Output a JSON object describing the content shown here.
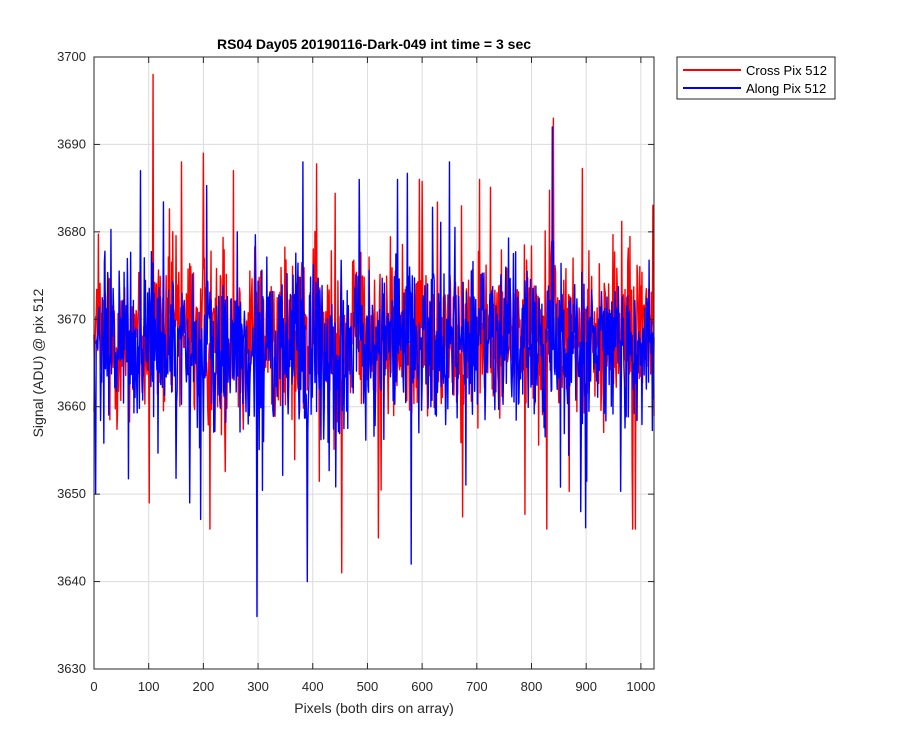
{
  "chart_data": {
    "type": "line",
    "title": "RS04 Day05 20190116-Dark-049 int time = 3 sec",
    "xlabel": "Pixels (both dirs on array)",
    "ylabel": "Signal (ADU) @ pix 512",
    "xlim": [
      0,
      1024
    ],
    "ylim": [
      3630,
      3700
    ],
    "xticks": [
      0,
      100,
      200,
      300,
      400,
      500,
      600,
      700,
      800,
      900,
      1000
    ],
    "yticks": [
      3630,
      3640,
      3650,
      3660,
      3670,
      3680,
      3690,
      3700
    ],
    "grid": true,
    "legend_position": "outside-top-right",
    "series": [
      {
        "name": "Cross Pix 512",
        "color": "#ff0000",
        "mean": 3668,
        "noise_range": [
          3654,
          3682
        ],
        "spikes": [
          {
            "x": 108,
            "y": 3698
          },
          {
            "x": 101,
            "y": 3649
          },
          {
            "x": 200,
            "y": 3689
          },
          {
            "x": 212,
            "y": 3646
          },
          {
            "x": 300,
            "y": 3671
          },
          {
            "x": 453,
            "y": 3641
          },
          {
            "x": 520,
            "y": 3645
          },
          {
            "x": 705,
            "y": 3686
          },
          {
            "x": 828,
            "y": 3646
          },
          {
            "x": 840,
            "y": 3693
          },
          {
            "x": 985,
            "y": 3646
          },
          {
            "x": 990,
            "y": 3646
          },
          {
            "x": 160,
            "y": 3688
          },
          {
            "x": 255,
            "y": 3687
          },
          {
            "x": 595,
            "y": 3686
          }
        ]
      },
      {
        "name": "Along Pix 512",
        "color": "#0000ff",
        "mean": 3667,
        "noise_range": [
          3653,
          3681
        ],
        "spikes": [
          {
            "x": 298,
            "y": 3636
          },
          {
            "x": 390,
            "y": 3640
          },
          {
            "x": 838,
            "y": 3692
          },
          {
            "x": 85,
            "y": 3687
          },
          {
            "x": 382,
            "y": 3688
          },
          {
            "x": 580,
            "y": 3642
          },
          {
            "x": 650,
            "y": 3688
          },
          {
            "x": 3,
            "y": 3650
          },
          {
            "x": 175,
            "y": 3649
          },
          {
            "x": 890,
            "y": 3648
          },
          {
            "x": 555,
            "y": 3686
          },
          {
            "x": 485,
            "y": 3686
          }
        ]
      }
    ]
  }
}
